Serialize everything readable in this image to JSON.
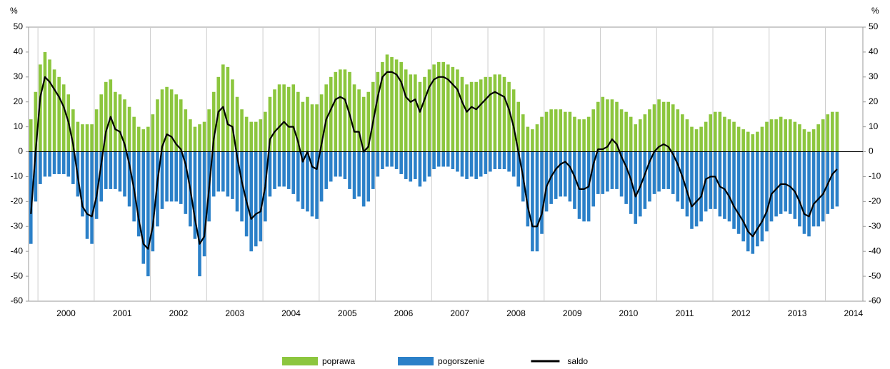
{
  "chart_data": {
    "type": "bar",
    "y_label": "%",
    "y2_label": "%",
    "ylim": [
      -60,
      50
    ],
    "yticks": [
      -60,
      -50,
      -40,
      -30,
      -20,
      -10,
      0,
      10,
      20,
      30,
      40,
      50
    ],
    "y2lim": [
      -60,
      50
    ],
    "y2ticks": [
      -60,
      -50,
      -40,
      -30,
      -20,
      -10,
      0,
      10,
      20,
      30,
      40,
      50
    ],
    "categories": [
      null,
      null,
      null,
      null,
      null,
      null,
      null,
      null,
      "2000",
      null,
      null,
      null,
      null,
      null,
      null,
      null,
      null,
      null,
      null,
      null,
      "2001",
      null,
      null,
      null,
      null,
      null,
      null,
      null,
      null,
      null,
      null,
      null,
      "2002",
      null,
      null,
      null,
      null,
      null,
      null,
      null,
      null,
      null,
      null,
      null,
      "2003",
      null,
      null,
      null,
      null,
      null,
      null,
      null,
      null,
      null,
      null,
      null,
      "2004",
      null,
      null,
      null,
      null,
      null,
      null,
      null,
      null,
      null,
      null,
      null,
      "2005",
      null,
      null,
      null,
      null,
      null,
      null,
      null,
      null,
      null,
      null,
      null,
      "2006",
      null,
      null,
      null,
      null,
      null,
      null,
      null,
      null,
      null,
      null,
      null,
      "2007",
      null,
      null,
      null,
      null,
      null,
      null,
      null,
      null,
      null,
      null,
      null,
      "2008",
      null,
      null,
      null,
      null,
      null,
      null,
      null,
      null,
      null,
      null,
      null,
      "2009",
      null,
      null,
      null,
      null,
      null,
      null,
      null,
      null,
      null,
      null,
      null,
      "2010",
      null,
      null,
      null,
      null,
      null,
      null,
      null,
      null,
      null,
      null,
      null,
      "2011",
      null,
      null,
      null,
      null,
      null,
      null,
      null,
      null,
      null,
      null,
      null,
      "2012",
      null,
      null,
      null,
      null,
      null,
      null,
      null,
      null,
      null,
      null,
      null,
      "2013",
      null,
      null,
      null,
      null,
      null,
      null,
      null,
      null,
      null,
      null,
      null,
      "2014",
      null
    ],
    "series": [
      {
        "name": "poprawa",
        "color": "#8cc63e",
        "kind": "bar",
        "values": [
          13,
          24,
          35,
          40,
          37,
          33,
          30,
          27,
          23,
          17,
          12,
          11,
          11,
          11,
          17,
          23,
          28,
          29,
          24,
          23,
          21,
          18,
          14,
          10,
          9,
          10,
          15,
          21,
          25,
          26,
          25,
          23,
          21,
          17,
          13,
          10,
          11,
          12,
          17,
          24,
          30,
          35,
          34,
          29,
          22,
          17,
          14,
          12,
          12,
          13,
          16,
          22,
          25,
          27,
          27,
          26,
          27,
          24,
          20,
          22,
          19,
          19,
          23,
          27,
          30,
          32,
          33,
          33,
          32,
          27,
          25,
          22,
          24,
          28,
          32,
          36,
          39,
          38,
          37,
          36,
          33,
          31,
          31,
          28,
          30,
          33,
          35,
          36,
          36,
          35,
          34,
          33,
          30,
          27,
          28,
          28,
          29,
          30,
          30,
          31,
          31,
          30,
          28,
          25,
          20,
          15,
          10,
          9,
          11,
          14,
          16,
          17,
          17,
          17,
          16,
          16,
          14,
          13,
          13,
          14,
          17,
          20,
          22,
          21,
          21,
          20,
          17,
          16,
          14,
          11,
          13,
          15,
          17,
          19,
          21,
          20,
          20,
          19,
          17,
          15,
          13,
          10,
          9,
          10,
          12,
          15,
          16,
          16,
          14,
          13,
          12,
          10,
          9,
          8,
          7,
          8,
          10,
          12,
          13,
          13,
          14,
          13,
          13,
          12,
          11,
          9,
          8,
          9,
          11,
          13,
          15,
          16,
          16,
          null,
          null,
          null,
          null,
          null
        ]
      },
      {
        "name": "pogorszenie",
        "color": "#2b80c8",
        "kind": "bar",
        "values": [
          -37,
          -20,
          -13,
          -10,
          -10,
          -9,
          -9,
          -9,
          -10,
          -13,
          -18,
          -26,
          -35,
          -37,
          -27,
          -20,
          -15,
          -15,
          -15,
          -16,
          -18,
          -22,
          -28,
          -34,
          -45,
          -50,
          -40,
          -30,
          -23,
          -20,
          -20,
          -20,
          -21,
          -25,
          -30,
          -35,
          -50,
          -42,
          -28,
          -18,
          -16,
          -16,
          -18,
          -19,
          -24,
          -28,
          -34,
          -40,
          -38,
          -36,
          -28,
          -18,
          -15,
          -14,
          -14,
          -15,
          -17,
          -20,
          -23,
          -24,
          -26,
          -27,
          -20,
          -15,
          -12,
          -10,
          -10,
          -11,
          -15,
          -19,
          -18,
          -22,
          -20,
          -15,
          -10,
          -7,
          -6,
          -6,
          -7,
          -9,
          -11,
          -12,
          -11,
          -14,
          -12,
          -10,
          -7,
          -6,
          -6,
          -6,
          -7,
          -8,
          -10,
          -11,
          -10,
          -11,
          -10,
          -9,
          -8,
          -7,
          -7,
          -7,
          -8,
          -10,
          -14,
          -20,
          -30,
          -40,
          -40,
          -33,
          -24,
          -21,
          -19,
          -18,
          -18,
          -20,
          -23,
          -27,
          -28,
          -28,
          -22,
          -17,
          -17,
          -16,
          -15,
          -15,
          -18,
          -21,
          -25,
          -29,
          -26,
          -23,
          -20,
          -17,
          -16,
          -15,
          -15,
          -17,
          -20,
          -23,
          -26,
          -31,
          -30,
          -28,
          -24,
          -23,
          -23,
          -26,
          -27,
          -28,
          -31,
          -33,
          -36,
          -40,
          -41,
          -38,
          -36,
          -32,
          -28,
          -26,
          -25,
          -24,
          -25,
          -27,
          -30,
          -33,
          -34,
          -30,
          -30,
          -28,
          -25,
          -23,
          -22,
          null,
          null,
          null,
          null,
          null
        ]
      },
      {
        "name": "saldo",
        "color": "#000000",
        "kind": "line",
        "values": [
          -25,
          0,
          22,
          30,
          28,
          25,
          22,
          18,
          12,
          3,
          -10,
          -22,
          -25,
          -26,
          -18,
          -5,
          8,
          14,
          9,
          8,
          3,
          -5,
          -15,
          -27,
          -37,
          -39,
          -30,
          -12,
          2,
          7,
          6,
          3,
          1,
          -5,
          -15,
          -27,
          -37,
          -34,
          -15,
          5,
          16,
          18,
          11,
          10,
          -2,
          -12,
          -20,
          -27,
          -25,
          -24,
          -14,
          5,
          8,
          10,
          12,
          10,
          10,
          4,
          -4,
          0,
          -6,
          -7,
          3,
          13,
          17,
          21,
          22,
          21,
          15,
          8,
          8,
          0,
          2,
          12,
          22,
          30,
          32,
          32,
          31,
          28,
          22,
          20,
          21,
          16,
          21,
          26,
          29,
          30,
          30,
          29,
          27,
          25,
          20,
          16,
          18,
          17,
          19,
          21,
          23,
          24,
          23,
          22,
          17,
          10,
          0,
          -10,
          -22,
          -30,
          -30,
          -25,
          -14,
          -10,
          -7,
          -5,
          -4,
          -6,
          -10,
          -15,
          -15,
          -14,
          -5,
          1,
          1,
          2,
          5,
          3,
          -2,
          -6,
          -11,
          -18,
          -14,
          -9,
          -4,
          0,
          2,
          3,
          2,
          -1,
          -5,
          -10,
          -16,
          -22,
          -20,
          -18,
          -11,
          -10,
          -10,
          -14,
          -15,
          -18,
          -22,
          -25,
          -28,
          -32,
          -34,
          -31,
          -28,
          -24,
          -17,
          -15,
          -13,
          -13,
          -14,
          -16,
          -20,
          -25,
          -26,
          -21,
          -19,
          -17,
          -13,
          -9,
          -7,
          null,
          null,
          null,
          null,
          null
        ]
      }
    ]
  }
}
